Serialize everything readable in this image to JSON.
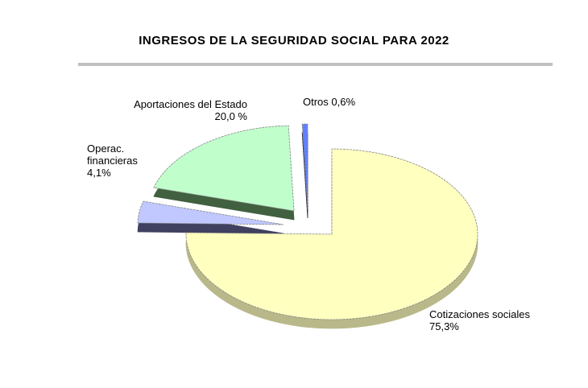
{
  "chart_data": {
    "type": "pie",
    "title": "INGRESOS DE LA SEGURIDAD  SOCIAL PARA 2022",
    "slices": [
      {
        "name": "Cotizaciones sociales",
        "value": 75.3,
        "label": "75,3%",
        "color": "#ffffc0",
        "side": "#b8b88a"
      },
      {
        "name": "Operac. financieras",
        "value": 4.1,
        "label": "4,1%",
        "color": "#c0c8ff",
        "side": "#404060"
      },
      {
        "name": "Aportaciones del Estado",
        "value": 20.0,
        "label": "20,0 %",
        "color": "#c0ffcc",
        "side": "#406040"
      },
      {
        "name": "Otros",
        "value": 0.6,
        "label": "0,6%",
        "color": "#6080ff",
        "side": "#202040"
      }
    ],
    "legend": "none"
  }
}
